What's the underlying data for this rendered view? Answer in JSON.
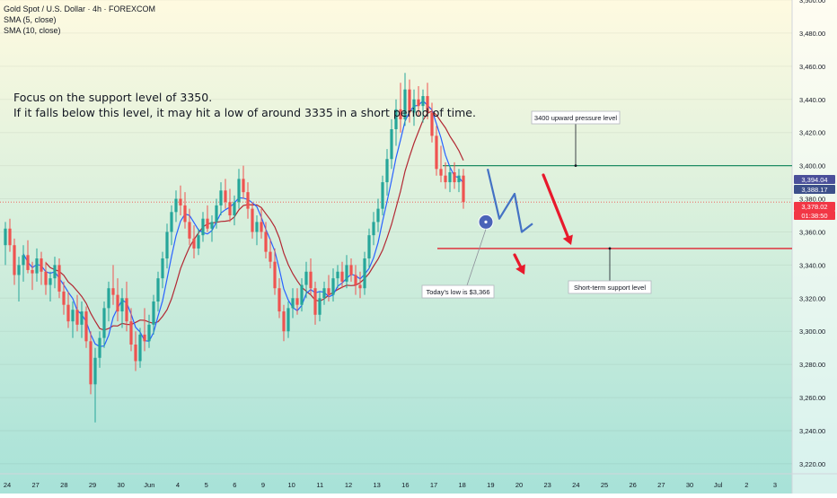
{
  "symbol": {
    "title": "Gold Spot / U.S. Dollar · 4h · FOREXCOM",
    "indicators": [
      "SMA (5, close)",
      "SMA (10, close)"
    ]
  },
  "annotations": {
    "note_line1": "Focus on the support level of 3350.",
    "note_line2": "If it falls below this level, it may hit a low of around 3335 in a short period of time.",
    "resistance_label": "3400 upward pressure level",
    "support_label": "Short-term support level",
    "low_label": "Today's low is $3,366"
  },
  "price_tags": [
    {
      "value": "3,394.04",
      "color": "#4a4f9a"
    },
    {
      "value": "3,388.17",
      "color": "#3c4f8a"
    },
    {
      "value": "3,378.02",
      "color": "#f23645"
    },
    {
      "value": "01:38:50",
      "color": "#f23645"
    }
  ],
  "colors": {
    "up": "#26a69a",
    "down": "#ef5350",
    "sma5": "#2962ff",
    "sma10": "#b22833",
    "resistance": "#1e8c63",
    "support": "#e0212f",
    "arrow": "#e8192c",
    "projection": "#4472c4",
    "bg_top": "#fffae0",
    "bg_bottom": "#a7e2d8"
  },
  "chart_data": {
    "type": "candlestick",
    "title": "Gold Spot / U.S. Dollar · 4h · FOREXCOM",
    "y_axis": {
      "ylim": [
        3214,
        3500
      ],
      "ticks": [
        3220,
        3240,
        3260,
        3280,
        3300,
        3320,
        3340,
        3360,
        3380,
        3400,
        3420,
        3440,
        3460,
        3480,
        3500
      ],
      "tick_labels": [
        "3,220.00",
        "3,240.00",
        "3,260.00",
        "3,280.00",
        "3,300.00",
        "3,320.00",
        "3,340.00",
        "3,360.00",
        "3,380.00",
        "3,400.00",
        "3,420.00",
        "3,440.00",
        "3,460.00",
        "3,480.00",
        "3,500.00"
      ]
    },
    "x_axis": {
      "labels": [
        "24",
        "27",
        "28",
        "29",
        "30",
        "Jun",
        "4",
        "5",
        "6",
        "9",
        "10",
        "11",
        "12",
        "13",
        "16",
        "17",
        "18",
        "19",
        "20",
        "23",
        "24",
        "25",
        "26",
        "27",
        "30",
        "Jul",
        "2",
        "3"
      ],
      "current_date_label": "18"
    },
    "levels": [
      {
        "name": "resistance",
        "value": 3400
      },
      {
        "name": "support",
        "value": 3350
      },
      {
        "name": "last_price",
        "value": 3378.02
      }
    ],
    "todays_low": 3366,
    "projection_path": [
      3398,
      3368,
      3383,
      3360,
      3365
    ],
    "candles": [
      {
        "o": 3352,
        "h": 3366,
        "l": 3340,
        "c": 3362
      },
      {
        "o": 3362,
        "h": 3368,
        "l": 3348,
        "c": 3352
      },
      {
        "o": 3352,
        "h": 3356,
        "l": 3328,
        "c": 3334
      },
      {
        "o": 3334,
        "h": 3345,
        "l": 3318,
        "c": 3340
      },
      {
        "o": 3340,
        "h": 3352,
        "l": 3330,
        "c": 3346
      },
      {
        "o": 3346,
        "h": 3355,
        "l": 3335,
        "c": 3337
      },
      {
        "o": 3337,
        "h": 3342,
        "l": 3325,
        "c": 3335
      },
      {
        "o": 3335,
        "h": 3350,
        "l": 3330,
        "c": 3344
      },
      {
        "o": 3344,
        "h": 3348,
        "l": 3328,
        "c": 3336
      },
      {
        "o": 3336,
        "h": 3342,
        "l": 3322,
        "c": 3328
      },
      {
        "o": 3328,
        "h": 3336,
        "l": 3318,
        "c": 3332
      },
      {
        "o": 3332,
        "h": 3345,
        "l": 3326,
        "c": 3340
      },
      {
        "o": 3340,
        "h": 3344,
        "l": 3320,
        "c": 3324
      },
      {
        "o": 3324,
        "h": 3330,
        "l": 3310,
        "c": 3316
      },
      {
        "o": 3316,
        "h": 3324,
        "l": 3302,
        "c": 3306
      },
      {
        "o": 3306,
        "h": 3318,
        "l": 3296,
        "c": 3313
      },
      {
        "o": 3313,
        "h": 3322,
        "l": 3300,
        "c": 3304
      },
      {
        "o": 3304,
        "h": 3318,
        "l": 3296,
        "c": 3312
      },
      {
        "o": 3312,
        "h": 3315,
        "l": 3290,
        "c": 3294
      },
      {
        "o": 3294,
        "h": 3300,
        "l": 3262,
        "c": 3268
      },
      {
        "o": 3268,
        "h": 3290,
        "l": 3245,
        "c": 3284
      },
      {
        "o": 3284,
        "h": 3300,
        "l": 3278,
        "c": 3296
      },
      {
        "o": 3296,
        "h": 3318,
        "l": 3290,
        "c": 3314
      },
      {
        "o": 3314,
        "h": 3330,
        "l": 3306,
        "c": 3326
      },
      {
        "o": 3326,
        "h": 3340,
        "l": 3316,
        "c": 3322
      },
      {
        "o": 3322,
        "h": 3332,
        "l": 3306,
        "c": 3312
      },
      {
        "o": 3312,
        "h": 3326,
        "l": 3302,
        "c": 3320
      },
      {
        "o": 3320,
        "h": 3330,
        "l": 3300,
        "c": 3306
      },
      {
        "o": 3306,
        "h": 3314,
        "l": 3288,
        "c": 3292
      },
      {
        "o": 3292,
        "h": 3300,
        "l": 3276,
        "c": 3282
      },
      {
        "o": 3282,
        "h": 3302,
        "l": 3278,
        "c": 3298
      },
      {
        "o": 3298,
        "h": 3314,
        "l": 3288,
        "c": 3294
      },
      {
        "o": 3294,
        "h": 3310,
        "l": 3290,
        "c": 3304
      },
      {
        "o": 3304,
        "h": 3322,
        "l": 3298,
        "c": 3318
      },
      {
        "o": 3318,
        "h": 3336,
        "l": 3312,
        "c": 3332
      },
      {
        "o": 3332,
        "h": 3348,
        "l": 3326,
        "c": 3344
      },
      {
        "o": 3344,
        "h": 3365,
        "l": 3338,
        "c": 3360
      },
      {
        "o": 3360,
        "h": 3376,
        "l": 3352,
        "c": 3372
      },
      {
        "o": 3372,
        "h": 3385,
        "l": 3366,
        "c": 3380
      },
      {
        "o": 3380,
        "h": 3388,
        "l": 3370,
        "c": 3376
      },
      {
        "o": 3376,
        "h": 3384,
        "l": 3362,
        "c": 3366
      },
      {
        "o": 3366,
        "h": 3374,
        "l": 3352,
        "c": 3356
      },
      {
        "o": 3356,
        "h": 3364,
        "l": 3344,
        "c": 3350
      },
      {
        "o": 3350,
        "h": 3362,
        "l": 3346,
        "c": 3358
      },
      {
        "o": 3358,
        "h": 3372,
        "l": 3354,
        "c": 3368
      },
      {
        "o": 3368,
        "h": 3376,
        "l": 3360,
        "c": 3362
      },
      {
        "o": 3362,
        "h": 3370,
        "l": 3354,
        "c": 3366
      },
      {
        "o": 3366,
        "h": 3380,
        "l": 3362,
        "c": 3376
      },
      {
        "o": 3376,
        "h": 3390,
        "l": 3370,
        "c": 3385
      },
      {
        "o": 3385,
        "h": 3392,
        "l": 3374,
        "c": 3378
      },
      {
        "o": 3378,
        "h": 3386,
        "l": 3366,
        "c": 3370
      },
      {
        "o": 3370,
        "h": 3382,
        "l": 3364,
        "c": 3378
      },
      {
        "o": 3378,
        "h": 3398,
        "l": 3374,
        "c": 3392
      },
      {
        "o": 3392,
        "h": 3400,
        "l": 3380,
        "c": 3384
      },
      {
        "o": 3384,
        "h": 3390,
        "l": 3368,
        "c": 3374
      },
      {
        "o": 3374,
        "h": 3378,
        "l": 3356,
        "c": 3360
      },
      {
        "o": 3360,
        "h": 3370,
        "l": 3352,
        "c": 3366
      },
      {
        "o": 3366,
        "h": 3374,
        "l": 3356,
        "c": 3360
      },
      {
        "o": 3360,
        "h": 3366,
        "l": 3344,
        "c": 3348
      },
      {
        "o": 3348,
        "h": 3356,
        "l": 3338,
        "c": 3342
      },
      {
        "o": 3342,
        "h": 3350,
        "l": 3322,
        "c": 3326
      },
      {
        "o": 3326,
        "h": 3332,
        "l": 3308,
        "c": 3312
      },
      {
        "o": 3312,
        "h": 3316,
        "l": 3294,
        "c": 3300
      },
      {
        "o": 3300,
        "h": 3318,
        "l": 3296,
        "c": 3314
      },
      {
        "o": 3314,
        "h": 3326,
        "l": 3308,
        "c": 3320
      },
      {
        "o": 3320,
        "h": 3326,
        "l": 3310,
        "c": 3316
      },
      {
        "o": 3316,
        "h": 3332,
        "l": 3312,
        "c": 3328
      },
      {
        "o": 3328,
        "h": 3342,
        "l": 3320,
        "c": 3336
      },
      {
        "o": 3336,
        "h": 3344,
        "l": 3322,
        "c": 3326
      },
      {
        "o": 3326,
        "h": 3330,
        "l": 3304,
        "c": 3310
      },
      {
        "o": 3310,
        "h": 3324,
        "l": 3306,
        "c": 3320
      },
      {
        "o": 3320,
        "h": 3330,
        "l": 3316,
        "c": 3326
      },
      {
        "o": 3326,
        "h": 3334,
        "l": 3318,
        "c": 3322
      },
      {
        "o": 3322,
        "h": 3338,
        "l": 3318,
        "c": 3332
      },
      {
        "o": 3332,
        "h": 3340,
        "l": 3326,
        "c": 3336
      },
      {
        "o": 3336,
        "h": 3342,
        "l": 3326,
        "c": 3330
      },
      {
        "o": 3330,
        "h": 3346,
        "l": 3326,
        "c": 3340
      },
      {
        "o": 3340,
        "h": 3344,
        "l": 3330,
        "c": 3334
      },
      {
        "o": 3334,
        "h": 3340,
        "l": 3322,
        "c": 3328
      },
      {
        "o": 3328,
        "h": 3336,
        "l": 3320,
        "c": 3326
      },
      {
        "o": 3326,
        "h": 3348,
        "l": 3322,
        "c": 3344
      },
      {
        "o": 3344,
        "h": 3362,
        "l": 3338,
        "c": 3358
      },
      {
        "o": 3358,
        "h": 3372,
        "l": 3352,
        "c": 3366
      },
      {
        "o": 3366,
        "h": 3380,
        "l": 3360,
        "c": 3374
      },
      {
        "o": 3374,
        "h": 3394,
        "l": 3370,
        "c": 3390
      },
      {
        "o": 3390,
        "h": 3410,
        "l": 3382,
        "c": 3404
      },
      {
        "o": 3404,
        "h": 3428,
        "l": 3398,
        "c": 3422
      },
      {
        "o": 3422,
        "h": 3440,
        "l": 3412,
        "c": 3434
      },
      {
        "o": 3434,
        "h": 3450,
        "l": 3420,
        "c": 3428
      },
      {
        "o": 3428,
        "h": 3456,
        "l": 3424,
        "c": 3446
      },
      {
        "o": 3446,
        "h": 3452,
        "l": 3426,
        "c": 3432
      },
      {
        "o": 3432,
        "h": 3446,
        "l": 3424,
        "c": 3440
      },
      {
        "o": 3440,
        "h": 3448,
        "l": 3430,
        "c": 3436
      },
      {
        "o": 3436,
        "h": 3446,
        "l": 3426,
        "c": 3442
      },
      {
        "o": 3442,
        "h": 3450,
        "l": 3428,
        "c": 3432
      },
      {
        "o": 3432,
        "h": 3438,
        "l": 3414,
        "c": 3418
      },
      {
        "o": 3418,
        "h": 3424,
        "l": 3394,
        "c": 3398
      },
      {
        "o": 3398,
        "h": 3412,
        "l": 3390,
        "c": 3394
      },
      {
        "o": 3394,
        "h": 3402,
        "l": 3386,
        "c": 3390
      },
      {
        "o": 3390,
        "h": 3400,
        "l": 3384,
        "c": 3396
      },
      {
        "o": 3396,
        "h": 3402,
        "l": 3386,
        "c": 3390
      },
      {
        "o": 3390,
        "h": 3398,
        "l": 3384,
        "c": 3394
      },
      {
        "o": 3394,
        "h": 3398,
        "l": 3374,
        "c": 3378
      }
    ]
  }
}
